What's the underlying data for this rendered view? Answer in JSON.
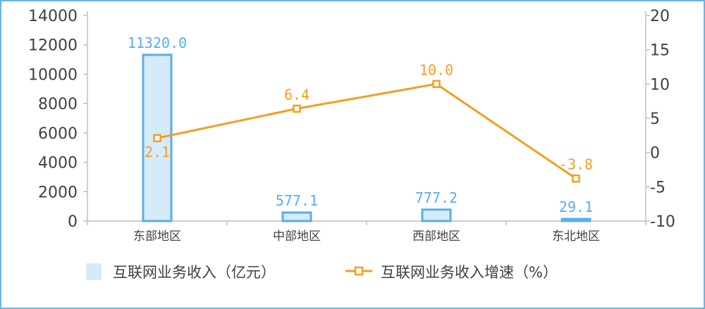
{
  "chart_data": {
    "type": "bar",
    "categories": [
      "东部地区",
      "中部地区",
      "西部地区",
      "东北地区"
    ],
    "series": [
      {
        "name": "互联网业务收入（亿元）",
        "type": "bar",
        "axis": "left",
        "values": [
          11320.0,
          577.1,
          777.2,
          29.1
        ],
        "labels": [
          "11320.0",
          "577.1",
          "777.2",
          "29.1"
        ]
      },
      {
        "name": "互联网业务收入增速（%）",
        "type": "line",
        "axis": "right",
        "values": [
          2.1,
          6.4,
          10.0,
          -3.8
        ],
        "labels": [
          "2.1",
          "6.4",
          "10.0",
          "-3.8"
        ]
      }
    ],
    "y_left": {
      "min": 0,
      "max": 14000,
      "ticks": [
        "0",
        "2000",
        "4000",
        "6000",
        "8000",
        "10000",
        "12000",
        "14000"
      ]
    },
    "y_right": {
      "min": -10,
      "max": 20,
      "ticks": [
        "-10",
        "-5",
        "0",
        "5",
        "10",
        "15",
        "20"
      ]
    },
    "legend_position": "bottom",
    "colors": {
      "bar_fill": "#d6ebfa",
      "bar_stroke": "#5aaee6",
      "line": "#f0a020",
      "axis": "#bfbfbf",
      "border": "#6cb4e4"
    }
  }
}
